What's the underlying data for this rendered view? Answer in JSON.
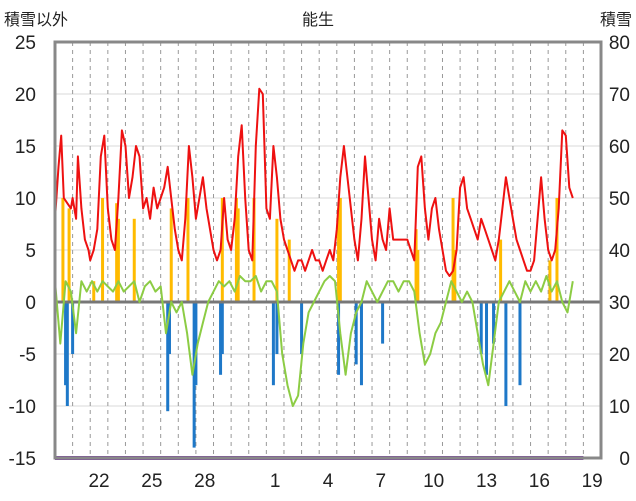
{
  "chart_data": {
    "type": "line",
    "title": "能生",
    "ylabel_left": "積雪以外",
    "ylabel_right": "積雪",
    "y_left_range": [
      -15,
      25
    ],
    "y_left_ticks": [
      "25",
      "20",
      "15",
      "10",
      "5",
      "0",
      "-5",
      "-10",
      "-15"
    ],
    "y_right_range": [
      0,
      80
    ],
    "y_right_ticks": [
      "80",
      "70",
      "60",
      "50",
      "40",
      "30",
      "20",
      "10",
      "0"
    ],
    "x_tick_labels": [
      "22",
      "25",
      "28",
      "1",
      "4",
      "7",
      "10",
      "13",
      "16",
      "19"
    ],
    "x_day_start": 20,
    "x_days": 31,
    "grid": "vertical-dashed-daily",
    "colors": {
      "temperature": "#ee1111",
      "humidity_or_aux": "#8ccc44",
      "precip_positive": "#ffbb00",
      "precip_negative": "#1e78c8",
      "snow_depth": "#7a3fa0",
      "zero_line": "#777777",
      "frame": "#888888"
    },
    "series": [
      {
        "key": "red",
        "values_by_day": [
          [
            20.0,
            8
          ],
          [
            20.2,
            13
          ],
          [
            20.35,
            16
          ],
          [
            20.5,
            10
          ],
          [
            20.7,
            9.5
          ],
          [
            20.9,
            9
          ],
          [
            21.0,
            10
          ],
          [
            21.2,
            8
          ],
          [
            21.3,
            14
          ],
          [
            21.5,
            9
          ],
          [
            21.7,
            6
          ],
          [
            21.9,
            5
          ],
          [
            22.0,
            4
          ],
          [
            22.2,
            5
          ],
          [
            22.4,
            7
          ],
          [
            22.6,
            14
          ],
          [
            22.8,
            16
          ],
          [
            23.0,
            9
          ],
          [
            23.2,
            6
          ],
          [
            23.4,
            5
          ],
          [
            23.6,
            10
          ],
          [
            23.8,
            16.5
          ],
          [
            24.0,
            15
          ],
          [
            24.2,
            10
          ],
          [
            24.4,
            12
          ],
          [
            24.6,
            15
          ],
          [
            24.8,
            14
          ],
          [
            25.0,
            9
          ],
          [
            25.2,
            10
          ],
          [
            25.4,
            8
          ],
          [
            25.6,
            11
          ],
          [
            25.8,
            9
          ],
          [
            26.0,
            10
          ],
          [
            26.2,
            11
          ],
          [
            26.4,
            13
          ],
          [
            26.6,
            10
          ],
          [
            26.8,
            7
          ],
          [
            27.0,
            5
          ],
          [
            27.2,
            4
          ],
          [
            27.4,
            8
          ],
          [
            27.6,
            15
          ],
          [
            27.8,
            12
          ],
          [
            28.0,
            8
          ],
          [
            28.2,
            10
          ],
          [
            28.4,
            12
          ],
          [
            28.6,
            9
          ],
          [
            28.8,
            7
          ],
          [
            29.0,
            5
          ],
          [
            29.2,
            4
          ],
          [
            29.4,
            5
          ],
          [
            29.6,
            10
          ],
          [
            29.8,
            6
          ],
          [
            30.0,
            5
          ],
          [
            30.2,
            8
          ],
          [
            30.4,
            14
          ],
          [
            30.6,
            17
          ],
          [
            30.8,
            10
          ],
          [
            31.0,
            5
          ],
          [
            31.2,
            4
          ],
          [
            31.4,
            15
          ],
          [
            31.6,
            20.5
          ],
          [
            31.8,
            20
          ],
          [
            32.0,
            9
          ],
          [
            32.2,
            8
          ],
          [
            32.4,
            15
          ],
          [
            32.6,
            12
          ],
          [
            32.8,
            8
          ],
          [
            33.0,
            6
          ],
          [
            33.2,
            5
          ],
          [
            33.4,
            4
          ],
          [
            33.6,
            3
          ],
          [
            33.8,
            4
          ],
          [
            34.0,
            4
          ],
          [
            34.2,
            3
          ],
          [
            34.4,
            4
          ],
          [
            34.6,
            5
          ],
          [
            34.8,
            4
          ],
          [
            35.0,
            4
          ],
          [
            35.2,
            3
          ],
          [
            35.4,
            4
          ],
          [
            35.6,
            5
          ],
          [
            35.8,
            4
          ],
          [
            36.0,
            7
          ],
          [
            36.2,
            12
          ],
          [
            36.4,
            15
          ],
          [
            36.6,
            12
          ],
          [
            36.8,
            9
          ],
          [
            37.0,
            6
          ],
          [
            37.2,
            4
          ],
          [
            37.4,
            8
          ],
          [
            37.6,
            14
          ],
          [
            37.8,
            10
          ],
          [
            38.0,
            6
          ],
          [
            38.2,
            4
          ],
          [
            38.4,
            8
          ],
          [
            38.6,
            6
          ],
          [
            38.8,
            5
          ],
          [
            39.0,
            9
          ],
          [
            39.2,
            6
          ],
          [
            40.0,
            6
          ],
          [
            40.2,
            5
          ],
          [
            40.4,
            4
          ],
          [
            40.6,
            13
          ],
          [
            40.8,
            14
          ],
          [
            41.0,
            9
          ],
          [
            41.2,
            6
          ],
          [
            41.4,
            9
          ],
          [
            41.6,
            10
          ],
          [
            41.8,
            7
          ],
          [
            42.0,
            5
          ],
          [
            42.2,
            3
          ],
          [
            42.4,
            2.5
          ],
          [
            42.6,
            3
          ],
          [
            42.8,
            5
          ],
          [
            43.0,
            11
          ],
          [
            43.2,
            12
          ],
          [
            43.4,
            9
          ],
          [
            43.6,
            8
          ],
          [
            43.8,
            7
          ],
          [
            44.0,
            6
          ],
          [
            44.2,
            8
          ],
          [
            44.4,
            7
          ],
          [
            44.6,
            6
          ],
          [
            44.8,
            5
          ],
          [
            45.0,
            4
          ],
          [
            45.2,
            6
          ],
          [
            45.4,
            9
          ],
          [
            45.6,
            12
          ],
          [
            45.8,
            10
          ],
          [
            46.0,
            8
          ],
          [
            46.2,
            6
          ],
          [
            46.4,
            5
          ],
          [
            46.6,
            4
          ],
          [
            46.8,
            3
          ],
          [
            47.0,
            3
          ],
          [
            47.2,
            4
          ],
          [
            47.4,
            8
          ],
          [
            47.6,
            12
          ],
          [
            47.8,
            8
          ],
          [
            48.0,
            5
          ],
          [
            48.2,
            4
          ],
          [
            48.4,
            5
          ],
          [
            48.6,
            9
          ],
          [
            48.8,
            16.5
          ],
          [
            49.0,
            16
          ],
          [
            49.2,
            11
          ],
          [
            49.4,
            10
          ]
        ]
      },
      {
        "key": "green",
        "values_by_day": [
          [
            20.0,
            2
          ],
          [
            20.3,
            -4
          ],
          [
            20.6,
            2
          ],
          [
            20.9,
            1
          ],
          [
            21.2,
            -3
          ],
          [
            21.5,
            2
          ],
          [
            21.8,
            1
          ],
          [
            22.1,
            2
          ],
          [
            22.4,
            1
          ],
          [
            22.7,
            2
          ],
          [
            23.0,
            1.5
          ],
          [
            23.3,
            1
          ],
          [
            23.6,
            2
          ],
          [
            23.9,
            1
          ],
          [
            24.2,
            1.5
          ],
          [
            24.5,
            2
          ],
          [
            24.8,
            0
          ],
          [
            25.1,
            1.5
          ],
          [
            25.4,
            2
          ],
          [
            25.7,
            1
          ],
          [
            26.0,
            1.5
          ],
          [
            26.3,
            -3
          ],
          [
            26.6,
            0
          ],
          [
            26.9,
            -1
          ],
          [
            27.2,
            0
          ],
          [
            27.5,
            -3
          ],
          [
            27.8,
            -7
          ],
          [
            28.1,
            -4
          ],
          [
            28.4,
            -2
          ],
          [
            28.7,
            0
          ],
          [
            29.0,
            1
          ],
          [
            29.3,
            2
          ],
          [
            29.6,
            1.5
          ],
          [
            29.9,
            2
          ],
          [
            30.2,
            1
          ],
          [
            30.5,
            2.5
          ],
          [
            30.8,
            2
          ],
          [
            31.1,
            2
          ],
          [
            31.4,
            2.5
          ],
          [
            31.7,
            1
          ],
          [
            32.0,
            2
          ],
          [
            32.3,
            2
          ],
          [
            32.6,
            1
          ],
          [
            32.9,
            -5
          ],
          [
            33.2,
            -8
          ],
          [
            33.5,
            -10
          ],
          [
            33.8,
            -9
          ],
          [
            34.1,
            -4
          ],
          [
            34.4,
            -1
          ],
          [
            34.7,
            0
          ],
          [
            35.0,
            1
          ],
          [
            35.3,
            2
          ],
          [
            35.6,
            2.5
          ],
          [
            35.9,
            2
          ],
          [
            36.2,
            -3
          ],
          [
            36.5,
            -7
          ],
          [
            36.8,
            -3
          ],
          [
            37.1,
            -1
          ],
          [
            37.4,
            0
          ],
          [
            37.7,
            2
          ],
          [
            38.0,
            1
          ],
          [
            38.3,
            0
          ],
          [
            38.6,
            1
          ],
          [
            38.9,
            2
          ],
          [
            39.2,
            2
          ],
          [
            39.5,
            1
          ],
          [
            39.8,
            2
          ],
          [
            40.1,
            2
          ],
          [
            40.4,
            1
          ],
          [
            40.7,
            -3
          ],
          [
            41.0,
            -6
          ],
          [
            41.3,
            -5
          ],
          [
            41.6,
            -3
          ],
          [
            41.9,
            -2
          ],
          [
            42.2,
            0
          ],
          [
            42.5,
            2
          ],
          [
            42.8,
            1
          ],
          [
            43.1,
            0
          ],
          [
            43.4,
            1
          ],
          [
            43.7,
            0
          ],
          [
            44.0,
            -3
          ],
          [
            44.3,
            -6
          ],
          [
            44.6,
            -8
          ],
          [
            44.9,
            -4
          ],
          [
            45.2,
            0
          ],
          [
            45.5,
            1
          ],
          [
            45.8,
            2
          ],
          [
            46.1,
            1
          ],
          [
            46.4,
            0
          ],
          [
            46.7,
            2
          ],
          [
            47.0,
            1
          ],
          [
            47.3,
            2
          ],
          [
            47.6,
            1
          ],
          [
            47.9,
            2.5
          ],
          [
            48.2,
            1
          ],
          [
            48.5,
            2
          ],
          [
            48.8,
            0
          ],
          [
            49.1,
            -1
          ],
          [
            49.4,
            2
          ]
        ]
      },
      {
        "key": "orange_bars",
        "values_by_day": [
          [
            20.45,
            10
          ],
          [
            20.8,
            9
          ],
          [
            22.2,
            2
          ],
          [
            22.7,
            10
          ],
          [
            23.5,
            9.5
          ],
          [
            23.6,
            8
          ],
          [
            24.5,
            8
          ],
          [
            26.6,
            9
          ],
          [
            27.55,
            10
          ],
          [
            29.5,
            10
          ],
          [
            30.3,
            10
          ],
          [
            30.4,
            9
          ],
          [
            31.3,
            10
          ],
          [
            32.6,
            8
          ],
          [
            33.3,
            6
          ],
          [
            36.1,
            9
          ],
          [
            36.2,
            10
          ],
          [
            40.5,
            7
          ],
          [
            40.6,
            5
          ],
          [
            42.6,
            10
          ],
          [
            42.7,
            5
          ],
          [
            45.3,
            6
          ],
          [
            48.1,
            4
          ],
          [
            48.5,
            10
          ]
        ]
      },
      {
        "key": "blue_bars",
        "values_by_day": [
          [
            20.6,
            -8
          ],
          [
            20.7,
            -10
          ],
          [
            21.0,
            -5
          ],
          [
            26.4,
            -10.5
          ],
          [
            26.5,
            -5
          ],
          [
            27.9,
            -14
          ],
          [
            28.0,
            -8
          ],
          [
            29.4,
            -7
          ],
          [
            29.5,
            -5
          ],
          [
            32.4,
            -8
          ],
          [
            32.6,
            -5
          ],
          [
            34.0,
            -5
          ],
          [
            36.1,
            -7
          ],
          [
            37.1,
            -6
          ],
          [
            37.4,
            -8
          ],
          [
            38.6,
            -4
          ],
          [
            44.2,
            -5
          ],
          [
            44.5,
            -7
          ],
          [
            44.9,
            -4
          ],
          [
            45.6,
            -10
          ],
          [
            46.4,
            -8
          ]
        ]
      },
      {
        "key": "purple_snow_depth",
        "values_by_day": [
          [
            20.0,
            0
          ],
          [
            50.0,
            0
          ]
        ]
      }
    ]
  }
}
